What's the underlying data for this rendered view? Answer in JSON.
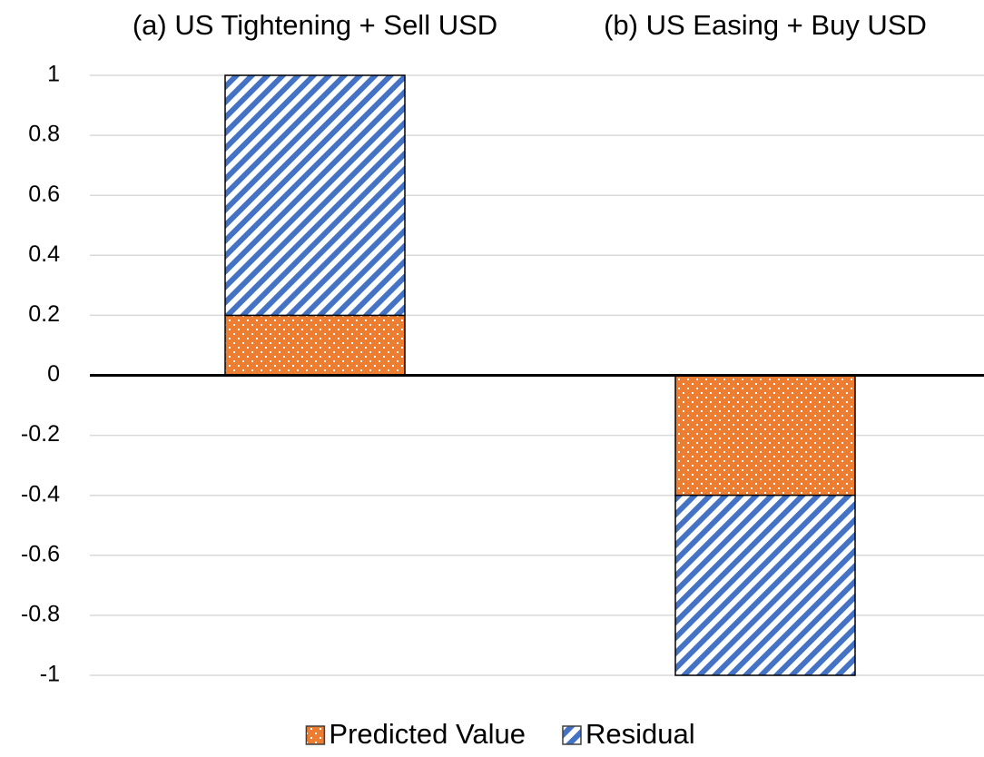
{
  "chart_data": {
    "type": "stacked_bar",
    "categories": [
      "(a) US Tightening + Sell USD",
      "(b) US Easing + Buy USD"
    ],
    "series": [
      {
        "name": "Predicted Value",
        "color": "#ed7d31",
        "values": [
          0.2,
          -0.4
        ]
      },
      {
        "name": "Residual",
        "color": "#4472c4",
        "values": [
          0.8,
          -0.6
        ]
      }
    ],
    "ylim": [
      -1,
      1
    ],
    "yticks": [
      -1,
      -0.8,
      -0.6,
      -0.4,
      -0.2,
      0,
      0.2,
      0.4,
      0.6,
      0.8,
      1
    ],
    "grid": true,
    "legend": "bottom"
  }
}
